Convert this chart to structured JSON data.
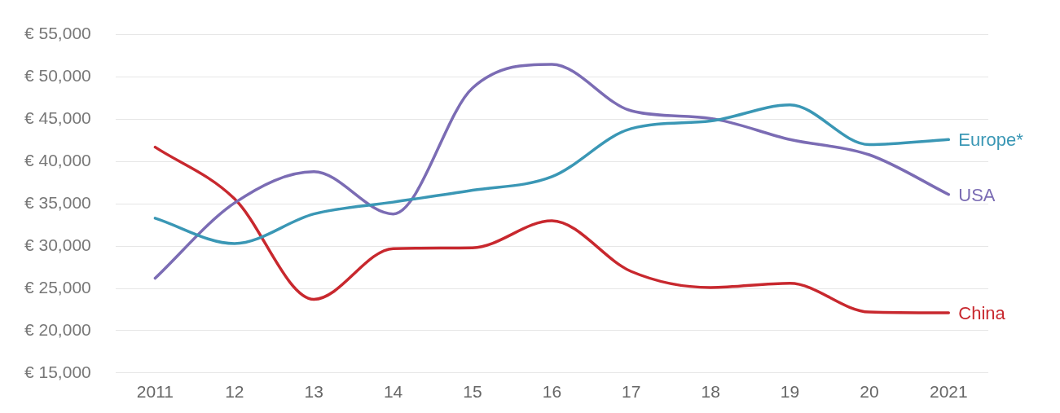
{
  "chart_data": {
    "type": "line",
    "categories": [
      "2011",
      "12",
      "13",
      "14",
      "15",
      "16",
      "17",
      "18",
      "19",
      "20",
      "2021"
    ],
    "series": [
      {
        "name": "Europe*",
        "color": "#3a97b5",
        "values": [
          33300,
          30300,
          33800,
          35200,
          36600,
          38200,
          43900,
          44800,
          46700,
          42000,
          42600
        ]
      },
      {
        "name": "USA",
        "color": "#7b6cb4",
        "values": [
          26200,
          35100,
          38800,
          33800,
          48700,
          51500,
          46000,
          45100,
          42600,
          40800,
          36100
        ]
      },
      {
        "name": "China",
        "color": "#c8282e",
        "values": [
          41700,
          35600,
          23700,
          29700,
          29800,
          33000,
          27000,
          25100,
          25600,
          22200,
          22100
        ]
      }
    ],
    "ylim": [
      15000,
      55000
    ],
    "yticks": [
      {
        "value": 15000,
        "label": "€ 15,000"
      },
      {
        "value": 20000,
        "label": "€ 20,000"
      },
      {
        "value": 25000,
        "label": "€ 25,000"
      },
      {
        "value": 30000,
        "label": "€ 30,000"
      },
      {
        "value": 35000,
        "label": "€ 35,000"
      },
      {
        "value": 40000,
        "label": "€ 40,000"
      },
      {
        "value": 45000,
        "label": "€ 45,000"
      },
      {
        "value": 50000,
        "label": "€ 50,000"
      },
      {
        "value": 55000,
        "label": "€ 55,000"
      }
    ],
    "grid": "y",
    "legend": false,
    "marker": "none",
    "line_style": "solid"
  }
}
